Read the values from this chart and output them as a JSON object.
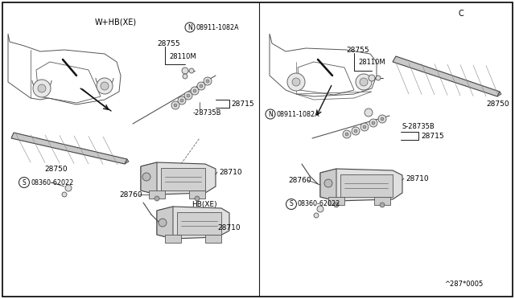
{
  "bg_color": "#ffffff",
  "border_color": "#000000",
  "line_color": "#000000",
  "left_label": "W+HB(XE)",
  "right_label": "C",
  "diagram_ref": "^287*0005",
  "lc": "#1a1a1a",
  "gray": "#888888"
}
